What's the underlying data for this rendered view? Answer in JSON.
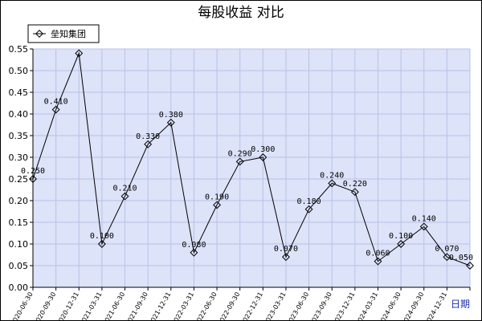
{
  "chart_data": {
    "type": "line",
    "title": "每股收益  对比",
    "xlabel": "日期",
    "ylabel": "",
    "ylim": [
      0,
      0.55
    ],
    "yticks": [
      "0.00",
      "0.05",
      "0.10",
      "0.15",
      "0.20",
      "0.25",
      "0.30",
      "0.35",
      "0.40",
      "0.45",
      "0.50",
      "0.55"
    ],
    "grid": true,
    "legend_position": "top-left",
    "categories": [
      "2020-06-30",
      "2020-09-30",
      "2020-12-31",
      "2021-03-31",
      "2021-06-30",
      "2021-09-30",
      "2021-12-31",
      "2022-03-31",
      "2022-06-30",
      "2022-09-30",
      "2022-12-31",
      "2023-03-31",
      "2023-06-30",
      "2023-09-30",
      "2023-12-31",
      "2024-03-31",
      "2024-06-30",
      "2024-09-30",
      "2024-12-31",
      "2025-03-31"
    ],
    "category_labels": [
      "2020-06-30",
      "2020-09-30",
      "2020-12-31",
      "2021-03-31",
      "2021-06-30",
      "2021-09-30",
      "2021-12-31",
      "2022-03-31",
      "2022-06-30",
      "2022-09-30",
      "2022-12-31",
      "2023-03-31",
      "2023-06-30",
      "2023-09-30",
      "2023-12-31",
      "2024-03-31",
      "2024-06-30",
      "2024-09-30",
      "2024-12-31",
      ""
    ],
    "series": [
      {
        "name": "垒知集团",
        "values": [
          0.25,
          0.41,
          0.54,
          0.1,
          0.21,
          0.33,
          0.38,
          0.08,
          0.19,
          0.29,
          0.3,
          0.07,
          0.18,
          0.24,
          0.22,
          0.06,
          0.1,
          0.14,
          0.07,
          0.05
        ],
        "labels": [
          "0.250",
          "0.410",
          "",
          "0.100",
          "0.210",
          "0.330",
          "0.380",
          "0.080",
          "0.190",
          "0.290",
          "0.300",
          "0.070",
          "0.180",
          "0.240",
          "0.220",
          "0.060",
          "0.100",
          "0.140",
          "0.070",
          "0.050"
        ],
        "color": "#000000"
      }
    ],
    "colors": {
      "plot_background": "#dde3f8",
      "grid": "#b8c2e8",
      "xlabel": "#1a2fb0"
    }
  }
}
